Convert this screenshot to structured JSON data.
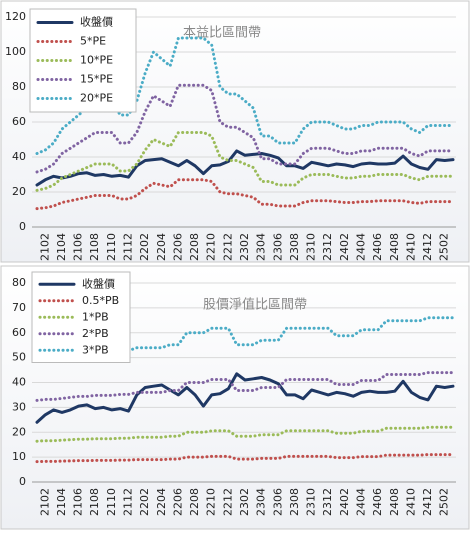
{
  "chart_data": [
    {
      "type": "line",
      "title": "本益比區間帶",
      "categories": [
        null,
        "2102",
        null,
        "2104",
        null,
        "2106",
        null,
        "2108",
        null,
        "2110",
        null,
        "2112",
        null,
        "2202",
        null,
        "2204",
        null,
        "2206",
        null,
        "2208",
        null,
        "2210",
        null,
        "2212",
        null,
        "2302",
        null,
        "2304",
        null,
        "2306",
        null,
        "2308",
        null,
        "2310",
        null,
        "2312",
        null,
        "2402",
        null,
        "2404",
        null,
        "2406",
        null,
        "2408",
        null,
        "2410",
        null,
        "2412",
        null,
        "2502",
        null
      ],
      "series": [
        {
          "name": "收盤價",
          "color": "#1f3864",
          "style": "solid",
          "values": [
            24,
            27,
            29,
            28,
            29,
            30.5,
            31,
            29.5,
            30,
            29,
            29.5,
            28.5,
            35,
            38,
            38.5,
            39,
            37,
            35,
            38,
            35,
            30.5,
            35,
            35.5,
            37.5,
            43.5,
            41,
            41.5,
            42,
            41,
            39.5,
            35,
            35,
            33.5,
            37,
            36,
            35,
            36,
            35.5,
            34.5,
            36,
            36.5,
            36,
            36,
            36.5,
            40.5,
            36,
            34,
            33,
            38.5,
            38,
            38.5
          ]
        },
        {
          "name": "5*PE",
          "color": "#c0504d",
          "style": "dotted",
          "values": [
            10.5,
            11,
            12,
            14,
            15,
            16,
            17,
            18,
            18,
            18,
            16,
            16,
            18,
            22,
            25,
            24,
            23,
            27,
            27,
            27,
            27,
            26,
            20,
            19,
            19,
            18,
            17,
            13,
            13,
            12,
            12,
            12,
            14,
            15,
            15,
            15,
            14.5,
            14,
            14,
            14.5,
            14.5,
            15,
            15,
            15,
            15,
            14,
            13.5,
            14.5,
            14.5,
            14.5,
            14.5
          ]
        },
        {
          "name": "10*PE",
          "color": "#9bbb59",
          "style": "dotted",
          "values": [
            21,
            22,
            24,
            28,
            30,
            32,
            34,
            36,
            36,
            36,
            32,
            32,
            36,
            44,
            50,
            48,
            46,
            54,
            54,
            54,
            54,
            52,
            40,
            38,
            38,
            36,
            34,
            26,
            26,
            24,
            24,
            24,
            28,
            30,
            30,
            30,
            29,
            28,
            28,
            29,
            29,
            30,
            30,
            30,
            30,
            28,
            27,
            29,
            29,
            29,
            29
          ]
        },
        {
          "name": "15*PE",
          "color": "#8064a2",
          "style": "dotted",
          "values": [
            31.5,
            33,
            36,
            42,
            45,
            48,
            51,
            54,
            54,
            54,
            48,
            48,
            54,
            66,
            75,
            72,
            69,
            81,
            81,
            81,
            81,
            78,
            60,
            57,
            57,
            54,
            51,
            39,
            39,
            36,
            36,
            36,
            42,
            45,
            45,
            45,
            43.5,
            42,
            42,
            43.5,
            43.5,
            45,
            45,
            45,
            45,
            42,
            40.5,
            43.5,
            43.5,
            43.5,
            43.5
          ]
        },
        {
          "name": "20*PE",
          "color": "#4bacc6",
          "style": "dotted",
          "values": [
            42,
            44,
            48,
            56,
            60,
            64,
            68,
            72,
            72,
            72,
            64,
            64,
            72,
            88,
            100,
            96,
            92,
            108,
            108,
            108,
            108,
            104,
            80,
            76,
            76,
            72,
            68,
            52,
            52,
            48,
            48,
            48,
            56,
            60,
            60,
            60,
            58,
            56,
            56,
            58,
            58,
            60,
            60,
            60,
            60,
            56,
            54,
            58,
            58,
            58,
            58
          ]
        }
      ],
      "ylim": [
        0,
        120
      ],
      "yticks": [
        0,
        20,
        40,
        60,
        80,
        100,
        120
      ],
      "grid": true,
      "legend": "upper-left"
    },
    {
      "type": "line",
      "title": "股價淨值比區間帶",
      "categories": [
        null,
        "2102",
        null,
        "2104",
        null,
        "2106",
        null,
        "2108",
        null,
        "2110",
        null,
        "2112",
        null,
        "2202",
        null,
        "2204",
        null,
        "2206",
        null,
        "2208",
        null,
        "2210",
        null,
        "2212",
        null,
        "2302",
        null,
        "2304",
        null,
        "2306",
        null,
        "2308",
        null,
        "2310",
        null,
        "2312",
        null,
        "2402",
        null,
        "2404",
        null,
        "2406",
        null,
        "2408",
        null,
        "2410",
        null,
        "2412",
        null,
        "2502",
        null
      ],
      "series": [
        {
          "name": "收盤價",
          "color": "#1f3864",
          "style": "solid",
          "values": [
            24,
            27,
            29,
            28,
            29,
            30.5,
            31,
            29.5,
            30,
            29,
            29.5,
            28.5,
            35,
            38,
            38.5,
            39,
            37,
            35,
            38,
            35,
            30.5,
            35,
            35.5,
            37.5,
            43.5,
            41,
            41.5,
            42,
            41,
            39.5,
            35,
            35,
            33.5,
            37,
            36,
            35,
            36,
            35.5,
            34.5,
            36,
            36.5,
            36,
            36,
            36.5,
            40.5,
            36,
            34,
            33,
            38.5,
            38,
            38.5
          ]
        },
        {
          "name": "0.5*PB",
          "color": "#c0504d",
          "style": "dotted",
          "values": [
            8.2,
            8.3,
            8.3,
            8.4,
            8.5,
            8.6,
            8.6,
            8.7,
            8.7,
            8.7,
            8.8,
            8.8,
            9,
            9,
            9,
            9,
            9.2,
            9.2,
            10,
            10,
            10,
            10.3,
            10.3,
            10.3,
            9.2,
            9.2,
            9.2,
            9.5,
            9.5,
            9.5,
            10.3,
            10.3,
            10.3,
            10.3,
            10.3,
            10.3,
            9.8,
            9.8,
            9.8,
            10.2,
            10.2,
            10.2,
            10.8,
            10.8,
            10.8,
            10.8,
            10.8,
            11,
            11,
            11,
            11
          ]
        },
        {
          "name": "1*PB",
          "color": "#9bbb59",
          "style": "dotted",
          "values": [
            16.4,
            16.6,
            16.6,
            16.8,
            17,
            17.2,
            17.2,
            17.4,
            17.4,
            17.4,
            17.6,
            17.6,
            18,
            18,
            18,
            18,
            18.4,
            18.4,
            20,
            20,
            20,
            20.6,
            20.6,
            20.6,
            18.4,
            18.4,
            18.4,
            19,
            19,
            19,
            20.6,
            20.6,
            20.6,
            20.6,
            20.6,
            20.6,
            19.6,
            19.6,
            19.6,
            20.4,
            20.4,
            20.4,
            21.6,
            21.6,
            21.6,
            21.6,
            21.6,
            22,
            22,
            22,
            22
          ]
        },
        {
          "name": "2*PB",
          "color": "#8064a2",
          "style": "dotted",
          "values": [
            32.8,
            33.2,
            33.2,
            33.6,
            34,
            34.4,
            34.4,
            34.8,
            34.8,
            34.8,
            35.2,
            35.2,
            36,
            36,
            36,
            36,
            36.8,
            36.8,
            40,
            40,
            40,
            41.2,
            41.2,
            41.2,
            36.8,
            36.8,
            36.8,
            38,
            38,
            38,
            41.2,
            41.2,
            41.2,
            41.2,
            41.2,
            41.2,
            39.2,
            39.2,
            39.2,
            40.8,
            40.8,
            40.8,
            43.2,
            43.2,
            43.2,
            43.2,
            43.2,
            44,
            44,
            44,
            44
          ]
        },
        {
          "name": "3*PB",
          "color": "#4bacc6",
          "style": "dotted",
          "values": [
            49.2,
            49.8,
            49.8,
            50.4,
            51,
            51.6,
            51.6,
            52.2,
            52.2,
            52.2,
            52.8,
            52.8,
            54,
            54,
            54,
            54,
            55.2,
            55.2,
            60,
            60,
            60,
            61.8,
            61.8,
            61.8,
            55.2,
            55.2,
            55.2,
            57,
            57,
            57,
            61.8,
            61.8,
            61.8,
            61.8,
            61.8,
            61.8,
            58.8,
            58.8,
            58.8,
            61.2,
            61.2,
            61.2,
            64.8,
            64.8,
            64.8,
            64.8,
            64.8,
            66,
            66,
            66,
            66
          ]
        }
      ],
      "ylim": [
        0,
        80
      ],
      "yticks": [
        0,
        10,
        20,
        30,
        40,
        50,
        60,
        70,
        80
      ],
      "grid": true,
      "legend": "upper-left"
    }
  ]
}
